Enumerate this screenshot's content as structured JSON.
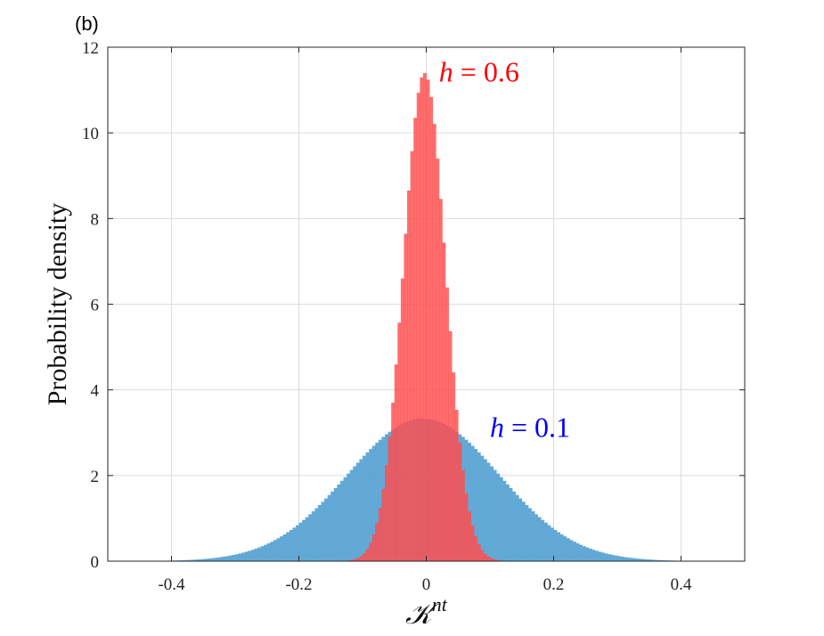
{
  "panel_label": "(b)",
  "chart_data": {
    "type": "bar",
    "ylabel": "Probability density",
    "xlabel": {
      "base": "𝒦",
      "sup": "nt"
    },
    "xlim": [
      -0.5,
      0.5
    ],
    "ylim": [
      0,
      12
    ],
    "xticks": [
      -0.4,
      -0.2,
      0,
      0.2,
      0.4
    ],
    "xtick_labels": [
      "-0.4",
      "-0.2",
      "0",
      "0.2",
      "0.4"
    ],
    "yticks": [
      0,
      2,
      4,
      6,
      8,
      10,
      12
    ],
    "ytick_labels": [
      "0",
      "2",
      "4",
      "6",
      "8",
      "10",
      "12"
    ],
    "grid": true,
    "series": [
      {
        "color": "#5ba4d4",
        "opacity": 0.95,
        "distribution": {
          "center": -0.005,
          "peak": 3.33,
          "sigma": 0.119,
          "range": [
            -0.43,
            0.47
          ]
        }
      },
      {
        "color": "#ff4d4d",
        "opacity": 0.82,
        "distribution": {
          "center": -0.003,
          "peak": 11.4,
          "sigma": 0.033,
          "range": [
            -0.2,
            0.2
          ]
        }
      }
    ],
    "annotations": [
      {
        "parts": [
          "h",
          " = 0.6"
        ],
        "color": "#ff0000",
        "x": 0.02,
        "y": 11.2
      },
      {
        "parts": [
          "h",
          " = 0.1"
        ],
        "color": "#0000ee",
        "x": 0.1,
        "y": 2.9
      }
    ]
  }
}
